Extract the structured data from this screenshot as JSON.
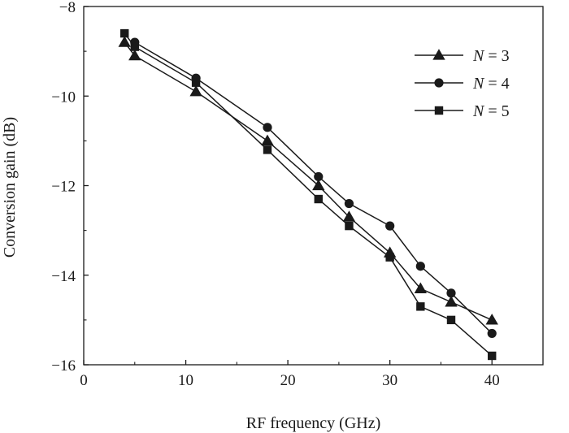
{
  "chart_data": {
    "type": "line",
    "title": "",
    "xlabel": "RF frequency (GHz)",
    "ylabel": "Conversion gain (dB)",
    "xlim": [
      0,
      45
    ],
    "ylim": [
      -16,
      -8
    ],
    "xticks": [
      0,
      10,
      20,
      30,
      40
    ],
    "yticks": [
      -16,
      -14,
      -12,
      -10,
      -8
    ],
    "xtick_labels": [
      "0",
      "10",
      "20",
      "30",
      "40"
    ],
    "ytick_labels": [
      "−16",
      "−14",
      "−12",
      "−10",
      "−8"
    ],
    "grid": false,
    "legend_position": "top-right",
    "series": [
      {
        "name_prefix": "N",
        "name_suffix": " = 3",
        "marker": "triangle",
        "x": [
          4,
          5,
          11,
          18,
          23,
          26,
          30,
          33,
          36,
          40
        ],
        "values": [
          -8.8,
          -9.1,
          -9.9,
          -11.0,
          -12.0,
          -12.7,
          -13.5,
          -14.3,
          -14.6,
          -15.0
        ]
      },
      {
        "name_prefix": "N",
        "name_suffix": " = 4",
        "marker": "circle",
        "x": [
          5,
          11,
          18,
          23,
          26,
          30,
          33,
          36,
          40
        ],
        "values": [
          -8.8,
          -9.6,
          -10.7,
          -11.8,
          -12.4,
          -12.9,
          -13.8,
          -14.4,
          -15.3
        ]
      },
      {
        "name_prefix": "N",
        "name_suffix": " = 5",
        "marker": "square",
        "x": [
          4,
          5,
          11,
          18,
          23,
          26,
          30,
          33,
          36,
          40
        ],
        "values": [
          -8.6,
          -8.9,
          -9.7,
          -11.2,
          -12.3,
          -12.9,
          -13.6,
          -14.7,
          -15.0,
          -15.8
        ]
      }
    ]
  }
}
